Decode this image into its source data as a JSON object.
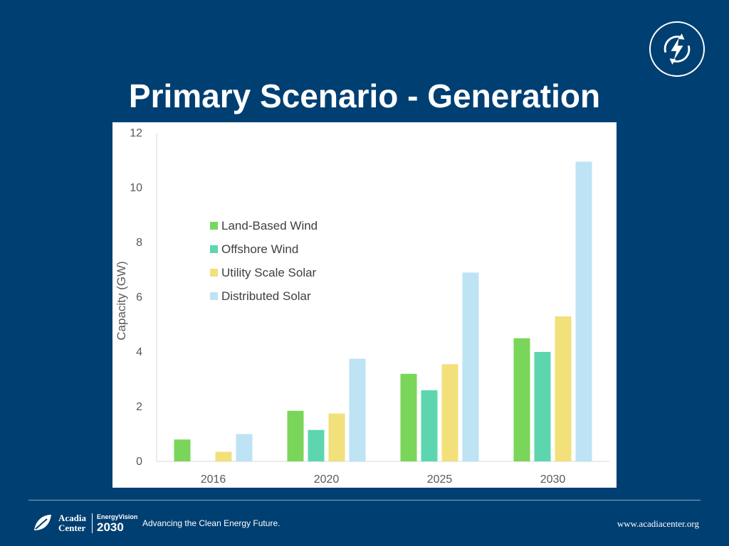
{
  "slide": {
    "title": "Primary Scenario - Generation"
  },
  "footer": {
    "org_line1": "Acadia",
    "org_line2": "Center",
    "program_small": "EnergyVision",
    "program_big": "2030",
    "tagline": "Advancing the Clean Energy Future.",
    "website": "www.acadiacenter.org"
  },
  "icons": {
    "logo": "lightning-cycle-icon",
    "footer_logo": "leaf-icon"
  },
  "chart_data": {
    "type": "bar",
    "title": "",
    "xlabel": "",
    "ylabel": "Capacity (GW)",
    "categories": [
      "2016",
      "2020",
      "2025",
      "2030"
    ],
    "ylim": [
      0,
      12
    ],
    "yticks": [
      0,
      2,
      4,
      6,
      8,
      10,
      12
    ],
    "grid": false,
    "legend_position": "top-left",
    "series": [
      {
        "name": "Land-Based Wind",
        "color": "#7ad65a",
        "values": [
          0.8,
          1.85,
          3.2,
          4.5
        ]
      },
      {
        "name": "Offshore Wind",
        "color": "#5dd6b0",
        "values": [
          0.0,
          1.15,
          2.6,
          4.0
        ]
      },
      {
        "name": "Utility Scale Solar",
        "color": "#f2e07a",
        "values": [
          0.35,
          1.75,
          3.55,
          5.3
        ]
      },
      {
        "name": "Distributed Solar",
        "color": "#bde3f5",
        "values": [
          1.0,
          3.75,
          6.9,
          10.95
        ]
      }
    ]
  }
}
